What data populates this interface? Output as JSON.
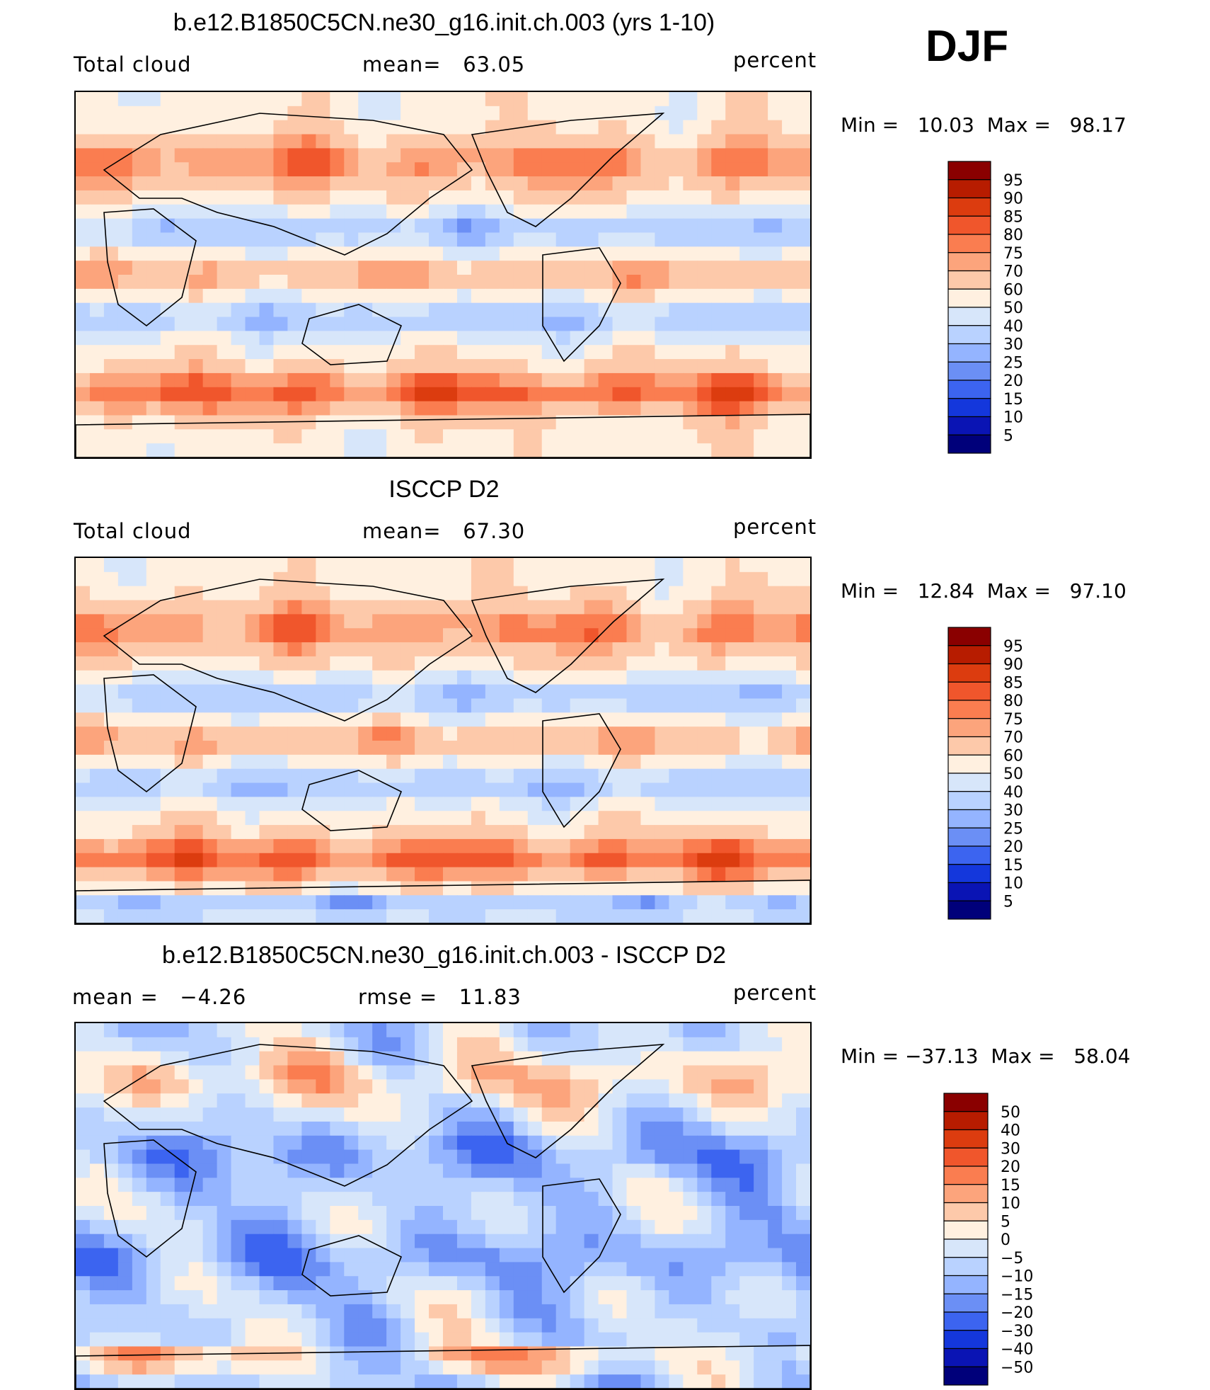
{
  "season": "DJF",
  "chart_data": [
    {
      "type": "heatmap",
      "title": "b.e12.B1850C5CN.ne30_g16.init.ch.003 (yrs 1-10)",
      "left_label": "Total cloud",
      "center_label": "mean=   63.05",
      "units": "percent",
      "stats": "Min =   10.03  Max =   98.17",
      "mean": 63.05,
      "min": 10.03,
      "max": 98.17,
      "levels": [
        "95",
        "90",
        "85",
        "80",
        "75",
        "70",
        "60",
        "50",
        "40",
        "30",
        "25",
        "20",
        "15",
        "10",
        "5"
      ],
      "colors": [
        "#8a0000",
        "#b71c00",
        "#dc3c0f",
        "#f0562c",
        "#fa7d50",
        "#fca47c",
        "#fdc9aa",
        "#fff0e0",
        "#d7e6fa",
        "#b9d2ff",
        "#94b4ff",
        "#6b8ff5",
        "#3c64f0",
        "#1437dc",
        "#0a14b4",
        "#00007a"
      ]
    },
    {
      "type": "heatmap",
      "title": "ISCCP D2",
      "left_label": "Total cloud",
      "center_label": "mean=   67.30",
      "units": "percent",
      "stats": "Min =   12.84  Max =   97.10",
      "mean": 67.3,
      "min": 12.84,
      "max": 97.1,
      "levels": [
        "95",
        "90",
        "85",
        "80",
        "75",
        "70",
        "60",
        "50",
        "40",
        "30",
        "25",
        "20",
        "15",
        "10",
        "5"
      ],
      "colors": [
        "#8a0000",
        "#b71c00",
        "#dc3c0f",
        "#f0562c",
        "#fa7d50",
        "#fca47c",
        "#fdc9aa",
        "#fff0e0",
        "#d7e6fa",
        "#b9d2ff",
        "#94b4ff",
        "#6b8ff5",
        "#3c64f0",
        "#1437dc",
        "#0a14b4",
        "#00007a"
      ]
    },
    {
      "type": "heatmap",
      "title": "b.e12.B1850C5CN.ne30_g16.init.ch.003 - ISCCP D2",
      "left_label": "mean =   −4.26",
      "center_label": "rmse =   11.83",
      "units": "percent",
      "stats": "Min = −37.13  Max =   58.04",
      "mean": -4.26,
      "rmse": 11.83,
      "min": -37.13,
      "max": 58.04,
      "levels": [
        "50",
        "40",
        "30",
        "20",
        "15",
        "10",
        "5",
        "0",
        "−5",
        "−10",
        "−15",
        "−20",
        "−30",
        "−40",
        "−50"
      ],
      "colors": [
        "#8a0000",
        "#b71c00",
        "#dc3c0f",
        "#f0562c",
        "#fa7d50",
        "#fca47c",
        "#fdc9aa",
        "#fff0e0",
        "#d7e6fa",
        "#b9d2ff",
        "#94b4ff",
        "#6b8ff5",
        "#3c64f0",
        "#1437dc",
        "#0a14b4",
        "#00007a"
      ]
    }
  ]
}
